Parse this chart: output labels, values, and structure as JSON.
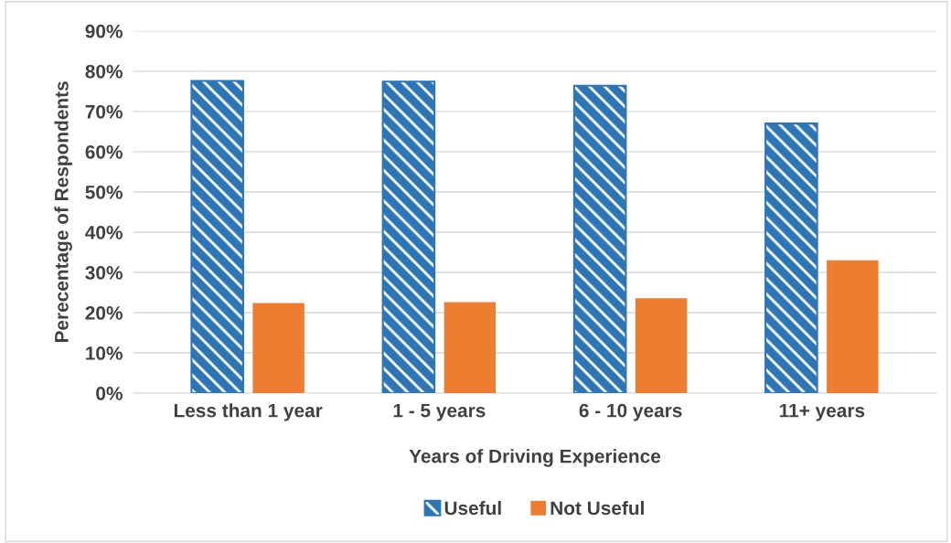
{
  "chart_data": {
    "type": "bar",
    "xlabel": "Years of Driving Experience",
    "ylabel": "Perecentage of Respondents",
    "categories": [
      "Less than 1 year",
      "1 - 5 years",
      "6 - 10 years",
      "11+ years"
    ],
    "series": [
      {
        "name": "Useful",
        "color": "#2e75b6",
        "values": [
          77.6,
          77.4,
          76.4,
          67.0
        ]
      },
      {
        "name": "Not Useful",
        "color": "#ed7d31",
        "values": [
          22.4,
          22.6,
          23.6,
          33.0
        ]
      }
    ],
    "ylim": [
      0,
      90
    ],
    "yticks": [
      {
        "value": 0,
        "label": "0%"
      },
      {
        "value": 10,
        "label": "10%"
      },
      {
        "value": 20,
        "label": "20%"
      },
      {
        "value": 30,
        "label": "30%"
      },
      {
        "value": 40,
        "label": "40%"
      },
      {
        "value": 50,
        "label": "50%"
      },
      {
        "value": 60,
        "label": "60%"
      },
      {
        "value": 70,
        "label": "70%"
      },
      {
        "value": 80,
        "label": "80%"
      },
      {
        "value": 90,
        "label": "90%"
      }
    ],
    "grid": "y",
    "legend": "bottom"
  }
}
